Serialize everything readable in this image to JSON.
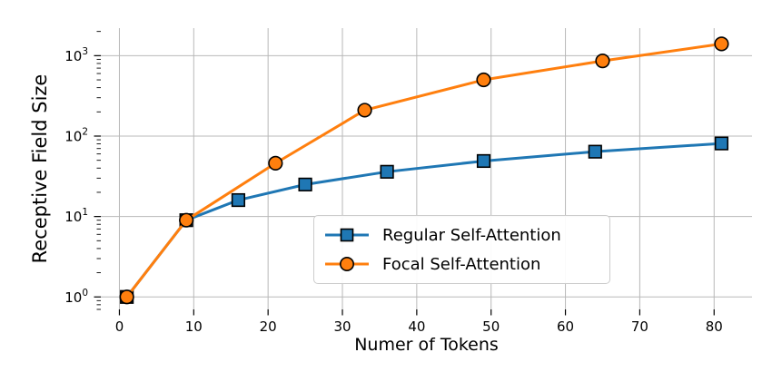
{
  "chart_data": {
    "type": "line",
    "title": "",
    "xlabel": "Numer of Tokens",
    "ylabel": "Receptive Field Size",
    "x_scale": "linear",
    "y_scale": "log",
    "xlim": [
      -2.5,
      85.1
    ],
    "ylim": [
      0.7,
      2200
    ],
    "x_ticks": [
      0,
      10,
      20,
      30,
      40,
      50,
      60,
      70,
      80
    ],
    "y_tick_base": "10",
    "y_tick_exponents": [
      0,
      1,
      2,
      3
    ],
    "grid": true,
    "spines": false,
    "legend_position": "inside center-right",
    "series": [
      {
        "name": "Regular Self-Attention",
        "color": "#1f77b4",
        "marker": "square",
        "marker_edge_color": "#000000",
        "x": [
          1,
          9,
          16,
          25,
          36,
          49,
          64,
          81
        ],
        "y": [
          1,
          9,
          16,
          25,
          36,
          49,
          64,
          81
        ]
      },
      {
        "name": "Focal Self-Attention",
        "color": "#ff7f0e",
        "marker": "circle",
        "marker_edge_color": "#000000",
        "x": [
          1,
          9,
          21,
          33,
          49,
          65,
          81
        ],
        "y": [
          1,
          9,
          46,
          210,
          500,
          860,
          1400
        ]
      }
    ]
  },
  "colors": {
    "background": "#ffffff",
    "grid": "#b8b8b8",
    "tick": "#000000",
    "text": "#000000",
    "legend_border": "#cccccc"
  }
}
